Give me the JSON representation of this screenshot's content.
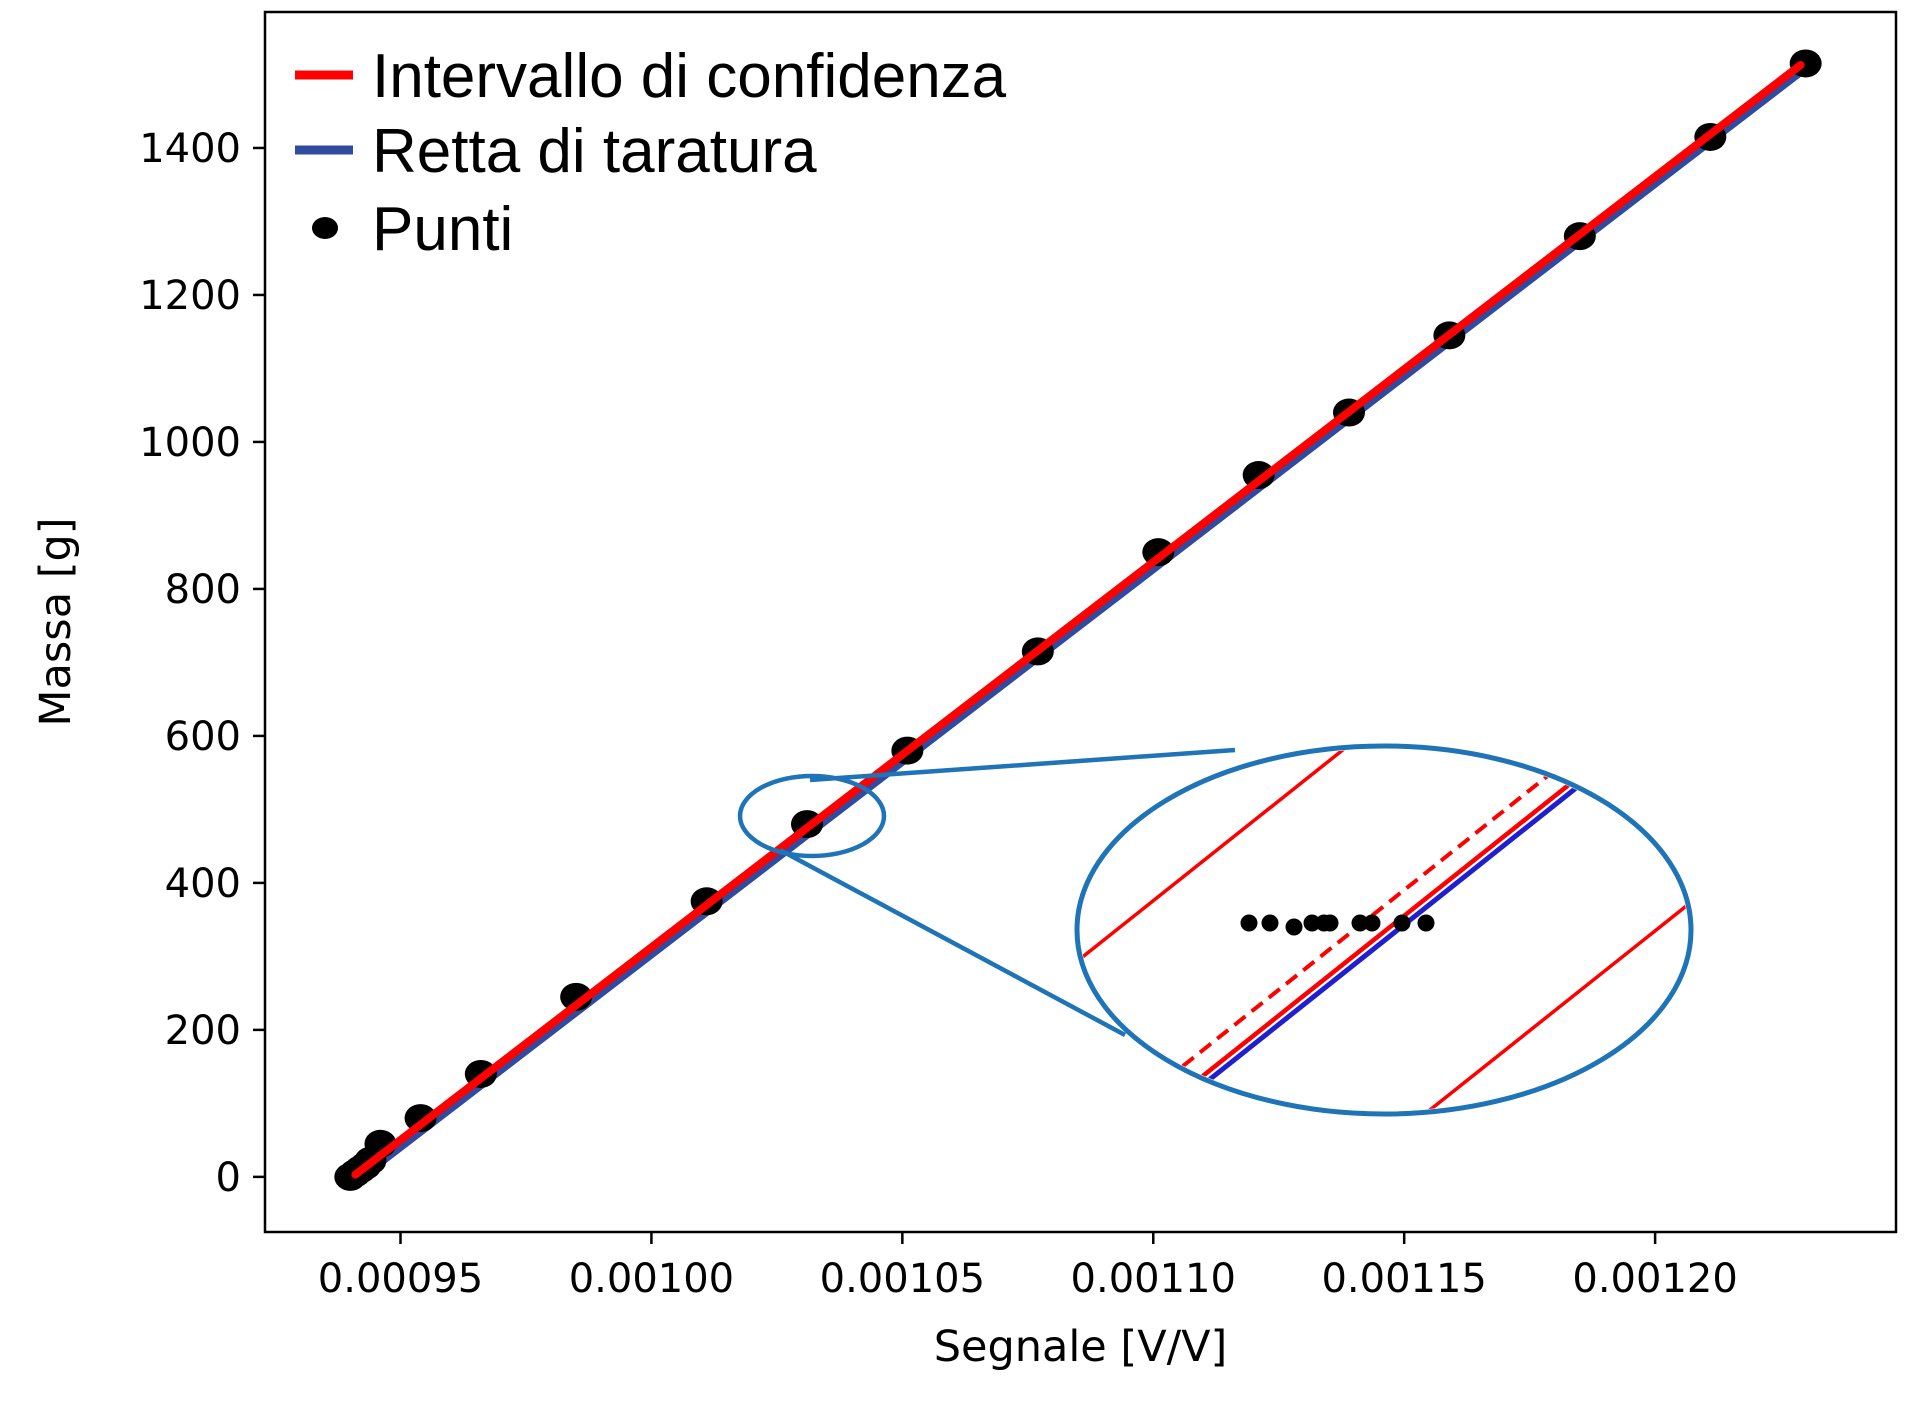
{
  "chart_data": {
    "type": "scatter",
    "title": "",
    "xlabel": "Segnale [V/V]",
    "ylabel": "Massa [g]",
    "xlim": [
      0.000923,
      0.001248
    ],
    "ylim": [
      -75,
      1585
    ],
    "x_ticks": [
      {
        "value": 0.00095,
        "label": "0.00095"
      },
      {
        "value": 0.001,
        "label": "0.00100"
      },
      {
        "value": 0.00105,
        "label": "0.00105"
      },
      {
        "value": 0.0011,
        "label": "0.00110"
      },
      {
        "value": 0.00115,
        "label": "0.00115"
      },
      {
        "value": 0.0012,
        "label": "0.00120"
      }
    ],
    "y_ticks": [
      {
        "value": 0,
        "label": "0"
      },
      {
        "value": 200,
        "label": "200"
      },
      {
        "value": 400,
        "label": "400"
      },
      {
        "value": 600,
        "label": "600"
      },
      {
        "value": 800,
        "label": "800"
      },
      {
        "value": 1000,
        "label": "1000"
      },
      {
        "value": 1200,
        "label": "1200"
      },
      {
        "value": 1400,
        "label": "1400"
      }
    ],
    "grid": false,
    "legend_position": "top-left",
    "series": [
      {
        "name": "Intervallo di confidenza",
        "kind": "line",
        "color": "#ff0000",
        "points": [
          [
            0.000941,
            3
          ],
          [
            0.001229,
            1513
          ]
        ]
      },
      {
        "name": "Retta di taratura",
        "kind": "line",
        "color": "#2f4a9e",
        "points": [
          [
            0.000941,
            -4
          ],
          [
            0.001229,
            1506
          ]
        ]
      },
      {
        "name": "Punti",
        "kind": "scatter",
        "color": "#000000",
        "x": [
          0.00094,
          0.000941,
          0.000942,
          0.000943,
          0.000944,
          0.000946,
          0.000954,
          0.000966,
          0.000985,
          0.001011,
          0.001031,
          0.001051,
          0.001077,
          0.001101,
          0.001121,
          0.001139,
          0.001159,
          0.001185,
          0.001211,
          0.00123
        ],
        "y": [
          0,
          5,
          10,
          15,
          22,
          45,
          80,
          140,
          245,
          375,
          480,
          580,
          715,
          850,
          955,
          1040,
          1145,
          1280,
          1415,
          1515
        ]
      }
    ],
    "zoom_inset": {
      "description_region": "around Segnale 0.00103, Massa 480",
      "band_offsets": [
        -1.0,
        -0.12,
        0.0,
        1.0
      ],
      "line_colors": {
        "band": "#ff0000",
        "fit": "#1f1fd0",
        "frame": "#1f73b7"
      },
      "points_x": [
        -0.45,
        -0.38,
        -0.3,
        -0.24,
        -0.2,
        -0.18,
        -0.08,
        -0.04,
        0.06,
        0.14
      ]
    }
  }
}
